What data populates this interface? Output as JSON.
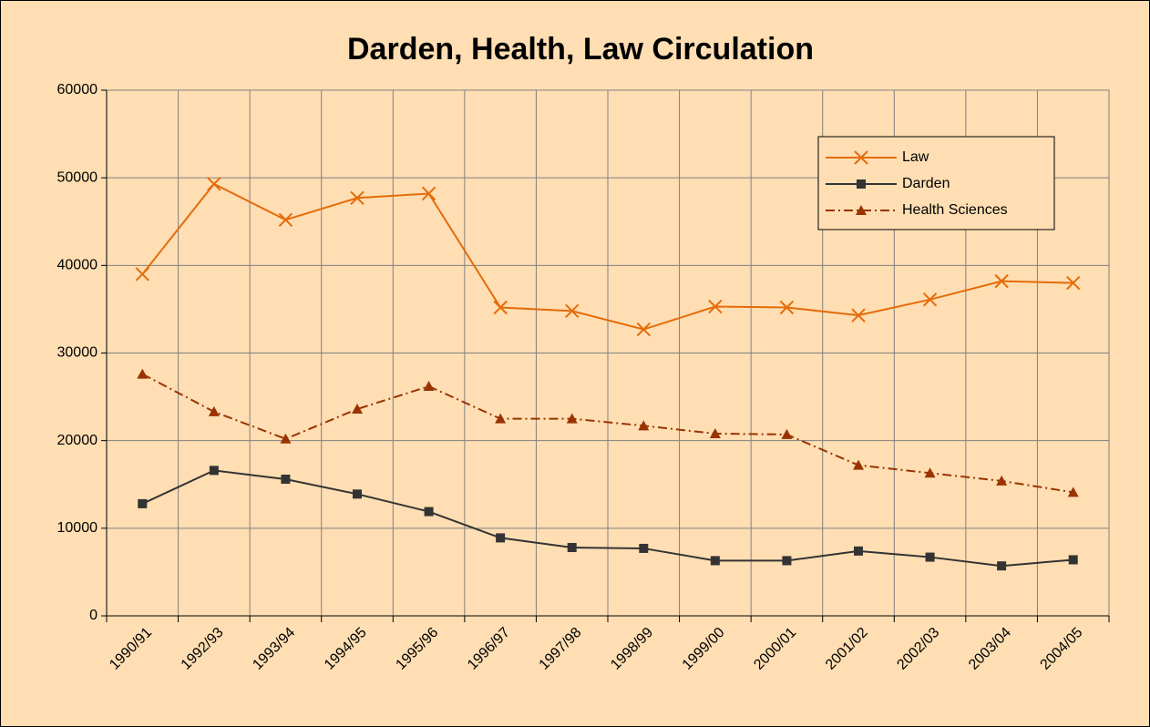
{
  "chart_data": {
    "type": "line",
    "title": "Darden, Health, Law Circulation",
    "categories": [
      "1990/91",
      "1992/93",
      "1993/94",
      "1994/95",
      "1995/96",
      "1996/97",
      "1997/98",
      "1998/99",
      "1999/00",
      "2000/01",
      "2001/02",
      "2002/03",
      "2003/04",
      "2004/05"
    ],
    "series": [
      {
        "name": "Law",
        "color": "#e46c0a",
        "marker": "x",
        "dash": "solid",
        "values": [
          39000,
          49300,
          45200,
          47700,
          48200,
          35200,
          34800,
          32700,
          35300,
          35200,
          34300,
          36100,
          38200,
          38000
        ]
      },
      {
        "name": "Darden",
        "color": "#333333",
        "marker": "square",
        "dash": "solid",
        "values": [
          12800,
          16600,
          15600,
          13900,
          11900,
          8900,
          7800,
          7700,
          6300,
          6300,
          7400,
          6700,
          5700,
          6400
        ]
      },
      {
        "name": "Health Sciences",
        "color": "#993300",
        "marker": "triangle",
        "dash": "dashdot",
        "values": [
          27600,
          23300,
          20200,
          23600,
          26200,
          22500,
          22500,
          21700,
          20800,
          20700,
          17200,
          16300,
          15400,
          14100
        ]
      }
    ],
    "ylim": [
      0,
      60000
    ],
    "yticks": [
      0,
      10000,
      20000,
      30000,
      40000,
      50000,
      60000
    ],
    "grid": true,
    "legend": "upper right",
    "background": "#ffdeb3"
  }
}
